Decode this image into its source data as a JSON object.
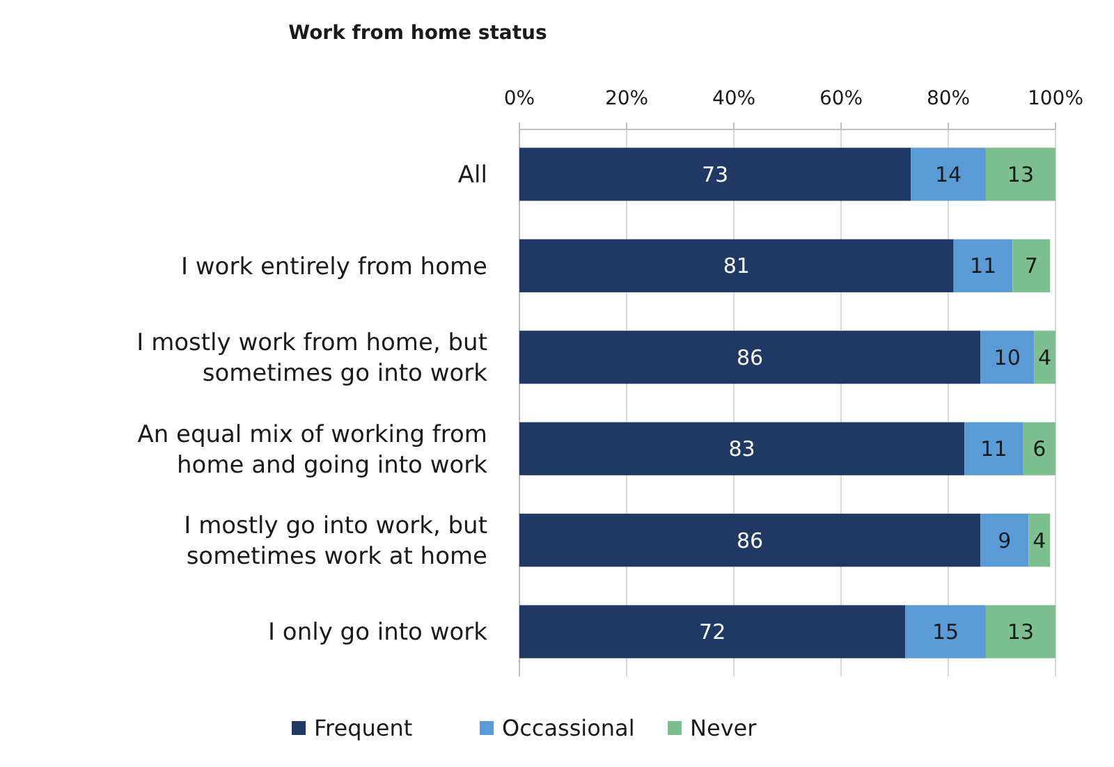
{
  "chart_data": {
    "type": "bar",
    "title": "Work from home status",
    "orientation": "horizontal",
    "stacked": true,
    "categories": [
      "All",
      "I work entirely from home",
      "I mostly work from home, but sometimes go into work",
      "An equal mix of working from home and going into work",
      "I mostly go into work, but sometimes work at home",
      "I only go into work"
    ],
    "series": [
      {
        "name": "Frequent",
        "color": "#1f3864",
        "values": [
          73,
          81,
          86,
          83,
          86,
          72
        ]
      },
      {
        "name": "Occassional",
        "color": "#5b9bd5",
        "values": [
          14,
          11,
          10,
          11,
          9,
          15
        ]
      },
      {
        "name": "Never",
        "color": "#7dbf8e",
        "values": [
          13,
          7,
          4,
          6,
          4,
          13
        ]
      }
    ],
    "xlim": [
      0,
      100
    ],
    "xticks": [
      {
        "value": 0,
        "label": "0%"
      },
      {
        "value": 20,
        "label": "20%"
      },
      {
        "value": 40,
        "label": "40%"
      },
      {
        "value": 60,
        "label": "60%"
      },
      {
        "value": 80,
        "label": "80%"
      },
      {
        "value": 100,
        "label": "100%"
      }
    ],
    "grid": "x",
    "legend": "bottom",
    "data_labels": true
  }
}
